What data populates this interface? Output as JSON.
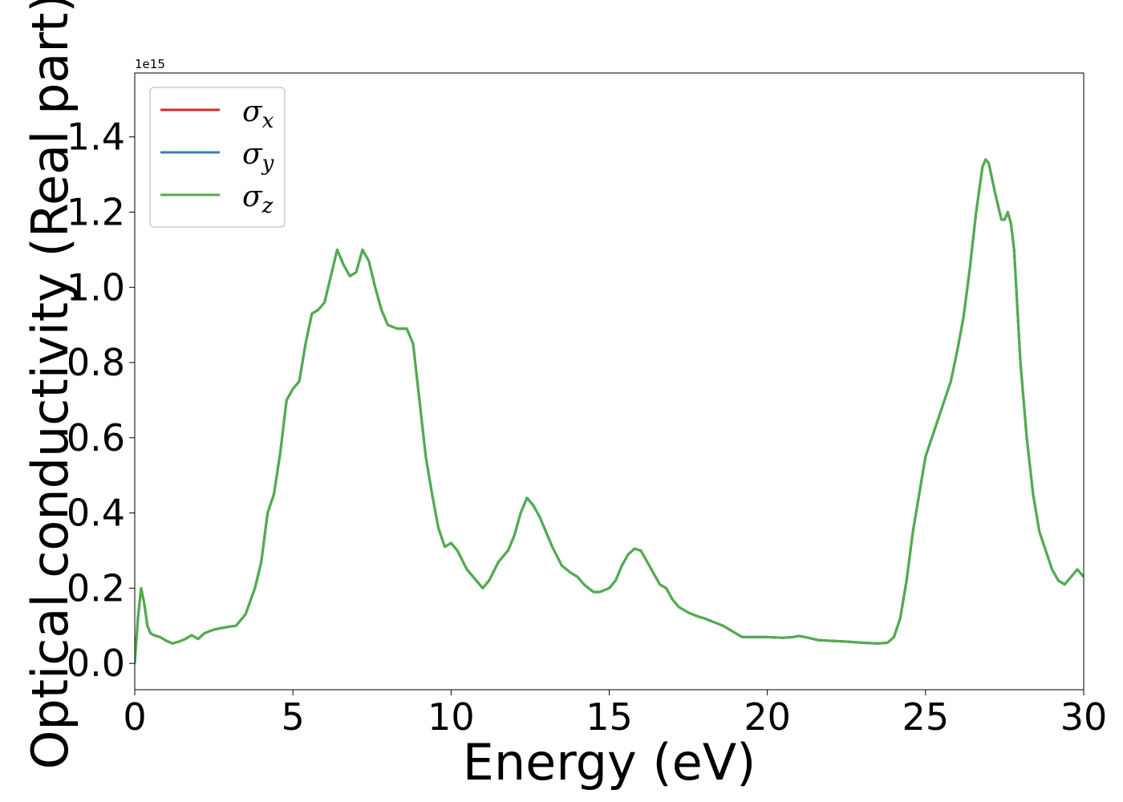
{
  "chart_data": {
    "type": "line",
    "title": "",
    "xlabel": "Energy (eV)",
    "ylabel": "Optical conductivity (Real part)",
    "y_offset_label": "1e15",
    "y_multiplier": 1000000000000000.0,
    "xlim": [
      0,
      30
    ],
    "ylim": [
      -0.07,
      1.57
    ],
    "x_ticks": [
      0,
      5,
      10,
      15,
      20,
      25,
      30
    ],
    "x_tick_labels": [
      "0",
      "5",
      "10",
      "15",
      "20",
      "25",
      "30"
    ],
    "y_ticks": [
      0.0,
      0.2,
      0.4,
      0.6,
      0.8,
      1.0,
      1.2,
      1.4
    ],
    "y_tick_labels": [
      "0.0",
      "0.2",
      "0.4",
      "0.6",
      "0.8",
      "1.0",
      "1.2",
      "1.4"
    ],
    "grid": false,
    "legend_position": "top-left",
    "x": [
      0.0,
      0.1,
      0.2,
      0.3,
      0.4,
      0.5,
      0.6,
      0.8,
      1.0,
      1.2,
      1.4,
      1.6,
      1.8,
      2.0,
      2.2,
      2.5,
      2.8,
      3.0,
      3.2,
      3.5,
      3.8,
      4.0,
      4.2,
      4.4,
      4.6,
      4.8,
      5.0,
      5.2,
      5.4,
      5.6,
      5.8,
      6.0,
      6.2,
      6.4,
      6.6,
      6.8,
      7.0,
      7.2,
      7.4,
      7.6,
      7.8,
      8.0,
      8.3,
      8.6,
      8.8,
      9.0,
      9.2,
      9.4,
      9.6,
      9.8,
      10.0,
      10.2,
      10.5,
      10.8,
      11.0,
      11.2,
      11.5,
      11.8,
      12.0,
      12.2,
      12.4,
      12.6,
      12.8,
      13.0,
      13.2,
      13.5,
      13.8,
      14.0,
      14.2,
      14.5,
      14.7,
      15.0,
      15.2,
      15.4,
      15.6,
      15.8,
      16.0,
      16.2,
      16.4,
      16.6,
      16.8,
      17.0,
      17.2,
      17.5,
      17.8,
      18.0,
      18.3,
      18.6,
      18.9,
      19.2,
      19.5,
      20.0,
      20.5,
      20.8,
      21.0,
      21.3,
      21.6,
      22.0,
      22.5,
      23.0,
      23.5,
      23.8,
      24.0,
      24.2,
      24.4,
      24.6,
      24.8,
      25.0,
      25.2,
      25.4,
      25.6,
      25.8,
      26.0,
      26.2,
      26.4,
      26.6,
      26.8,
      26.9,
      27.0,
      27.2,
      27.4,
      27.5,
      27.6,
      27.7,
      27.8,
      28.0,
      28.2,
      28.4,
      28.6,
      28.8,
      29.0,
      29.2,
      29.4,
      29.6,
      29.8,
      30.0
    ],
    "series": [
      {
        "name": "σx",
        "symbol": "σ",
        "subscript": "x",
        "color": "#d62728",
        "values": [
          0.0,
          0.12,
          0.2,
          0.16,
          0.1,
          0.08,
          0.075,
          0.07,
          0.06,
          0.053,
          0.058,
          0.065,
          0.075,
          0.065,
          0.08,
          0.09,
          0.095,
          0.098,
          0.1,
          0.13,
          0.2,
          0.27,
          0.4,
          0.45,
          0.56,
          0.7,
          0.73,
          0.75,
          0.85,
          0.93,
          0.94,
          0.96,
          1.03,
          1.1,
          1.06,
          1.03,
          1.04,
          1.1,
          1.07,
          1.0,
          0.94,
          0.9,
          0.89,
          0.89,
          0.85,
          0.7,
          0.55,
          0.45,
          0.36,
          0.31,
          0.32,
          0.3,
          0.25,
          0.22,
          0.2,
          0.22,
          0.27,
          0.3,
          0.34,
          0.4,
          0.44,
          0.42,
          0.39,
          0.35,
          0.31,
          0.26,
          0.24,
          0.23,
          0.21,
          0.19,
          0.19,
          0.2,
          0.22,
          0.26,
          0.29,
          0.305,
          0.3,
          0.27,
          0.24,
          0.21,
          0.2,
          0.17,
          0.15,
          0.135,
          0.125,
          0.12,
          0.11,
          0.1,
          0.085,
          0.07,
          0.07,
          0.07,
          0.068,
          0.07,
          0.073,
          0.068,
          0.062,
          0.06,
          0.058,
          0.055,
          0.053,
          0.055,
          0.07,
          0.12,
          0.22,
          0.35,
          0.45,
          0.55,
          0.6,
          0.65,
          0.7,
          0.75,
          0.83,
          0.92,
          1.05,
          1.2,
          1.32,
          1.34,
          1.33,
          1.25,
          1.18,
          1.18,
          1.2,
          1.17,
          1.1,
          0.8,
          0.6,
          0.45,
          0.35,
          0.3,
          0.25,
          0.22,
          0.21,
          0.23,
          0.25,
          0.23
        ]
      },
      {
        "name": "σy",
        "symbol": "σ",
        "subscript": "y",
        "color": "#377eb8",
        "values": [
          0.0,
          0.12,
          0.2,
          0.16,
          0.1,
          0.08,
          0.075,
          0.07,
          0.06,
          0.053,
          0.058,
          0.065,
          0.075,
          0.065,
          0.08,
          0.09,
          0.095,
          0.098,
          0.1,
          0.13,
          0.2,
          0.27,
          0.4,
          0.45,
          0.56,
          0.7,
          0.73,
          0.75,
          0.85,
          0.93,
          0.94,
          0.96,
          1.03,
          1.1,
          1.06,
          1.03,
          1.04,
          1.1,
          1.07,
          1.0,
          0.94,
          0.9,
          0.89,
          0.89,
          0.85,
          0.7,
          0.55,
          0.45,
          0.36,
          0.31,
          0.32,
          0.3,
          0.25,
          0.22,
          0.2,
          0.22,
          0.27,
          0.3,
          0.34,
          0.4,
          0.44,
          0.42,
          0.39,
          0.35,
          0.31,
          0.26,
          0.24,
          0.23,
          0.21,
          0.19,
          0.19,
          0.2,
          0.22,
          0.26,
          0.29,
          0.305,
          0.3,
          0.27,
          0.24,
          0.21,
          0.2,
          0.17,
          0.15,
          0.135,
          0.125,
          0.12,
          0.11,
          0.1,
          0.085,
          0.07,
          0.07,
          0.07,
          0.068,
          0.07,
          0.073,
          0.068,
          0.062,
          0.06,
          0.058,
          0.055,
          0.053,
          0.055,
          0.07,
          0.12,
          0.22,
          0.35,
          0.45,
          0.55,
          0.6,
          0.65,
          0.7,
          0.75,
          0.83,
          0.92,
          1.05,
          1.2,
          1.32,
          1.34,
          1.33,
          1.25,
          1.18,
          1.18,
          1.2,
          1.17,
          1.1,
          0.8,
          0.6,
          0.45,
          0.35,
          0.3,
          0.25,
          0.22,
          0.21,
          0.23,
          0.25,
          0.23
        ]
      },
      {
        "name": "σz",
        "symbol": "σ",
        "subscript": "z",
        "color": "#4daf4a",
        "values": [
          0.0,
          0.12,
          0.2,
          0.16,
          0.1,
          0.08,
          0.075,
          0.07,
          0.06,
          0.053,
          0.058,
          0.065,
          0.075,
          0.065,
          0.08,
          0.09,
          0.095,
          0.098,
          0.1,
          0.13,
          0.2,
          0.27,
          0.4,
          0.45,
          0.56,
          0.7,
          0.73,
          0.75,
          0.85,
          0.93,
          0.94,
          0.96,
          1.03,
          1.1,
          1.06,
          1.03,
          1.04,
          1.1,
          1.07,
          1.0,
          0.94,
          0.9,
          0.89,
          0.89,
          0.85,
          0.7,
          0.55,
          0.45,
          0.36,
          0.31,
          0.32,
          0.3,
          0.25,
          0.22,
          0.2,
          0.22,
          0.27,
          0.3,
          0.34,
          0.4,
          0.44,
          0.42,
          0.39,
          0.35,
          0.31,
          0.26,
          0.24,
          0.23,
          0.21,
          0.19,
          0.19,
          0.2,
          0.22,
          0.26,
          0.29,
          0.305,
          0.3,
          0.27,
          0.24,
          0.21,
          0.2,
          0.17,
          0.15,
          0.135,
          0.125,
          0.12,
          0.11,
          0.1,
          0.085,
          0.07,
          0.07,
          0.07,
          0.068,
          0.07,
          0.073,
          0.068,
          0.062,
          0.06,
          0.058,
          0.055,
          0.053,
          0.055,
          0.07,
          0.12,
          0.22,
          0.35,
          0.45,
          0.55,
          0.6,
          0.65,
          0.7,
          0.75,
          0.83,
          0.92,
          1.05,
          1.2,
          1.32,
          1.34,
          1.33,
          1.25,
          1.18,
          1.18,
          1.2,
          1.17,
          1.1,
          0.8,
          0.6,
          0.45,
          0.35,
          0.3,
          0.25,
          0.22,
          0.21,
          0.23,
          0.25,
          0.23
        ]
      }
    ]
  }
}
